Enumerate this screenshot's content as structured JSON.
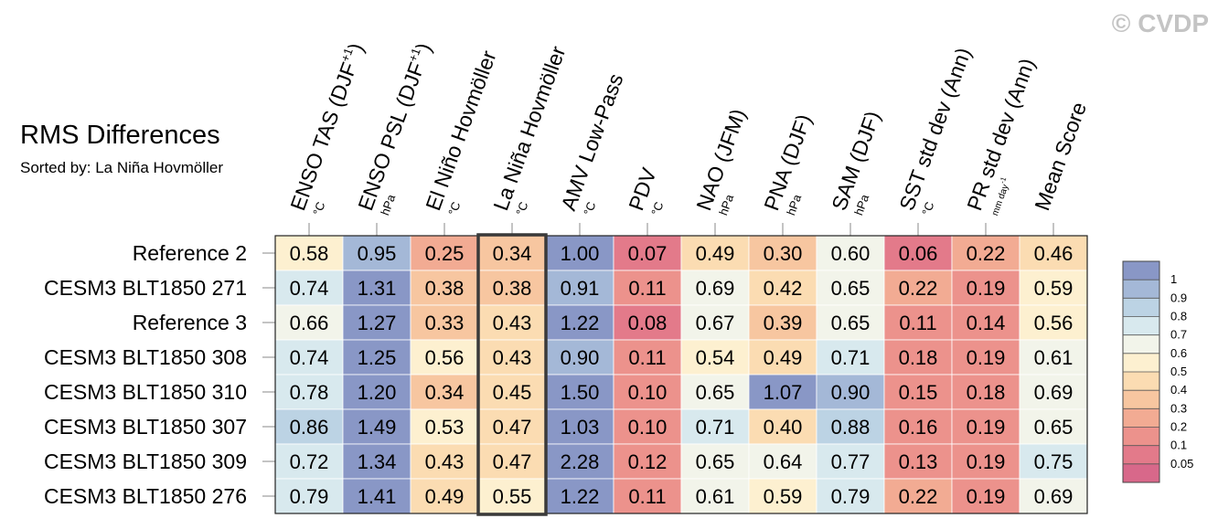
{
  "header": {
    "title": "RMS Differences",
    "subtitle": "Sorted by: La Niña Hovmöller",
    "watermark": "© CVDP"
  },
  "chart_data": {
    "type": "heatmap",
    "title": "RMS Differences",
    "subtitle": "Sorted by: La Niña Hovmöller",
    "columns": [
      {
        "label": "ENSO TAS (DJF",
        "sup": "+1",
        "tail": ")",
        "unit": "°C"
      },
      {
        "label": "ENSO PSL (DJF",
        "sup": "+1",
        "tail": ")",
        "unit": "hPa"
      },
      {
        "label": "El Niño Hovmöller",
        "sup": "",
        "tail": "",
        "unit": "°C"
      },
      {
        "label": "La Niña Hovmöller",
        "sup": "",
        "tail": "",
        "unit": "°C"
      },
      {
        "label": "AMV Low-Pass",
        "sup": "",
        "tail": "",
        "unit": "°C"
      },
      {
        "label": "PDV",
        "sup": "",
        "tail": "",
        "unit": "°C"
      },
      {
        "label": "NAO (JFM)",
        "sup": "",
        "tail": "",
        "unit": "hPa"
      },
      {
        "label": "PNA (DJF)",
        "sup": "",
        "tail": "",
        "unit": "hPa"
      },
      {
        "label": "SAM (DJF)",
        "sup": "",
        "tail": "",
        "unit": "hPa"
      },
      {
        "label": "SST std dev (Ann)",
        "sup": "",
        "tail": "",
        "unit": "°C"
      },
      {
        "label": "PR std dev (Ann)",
        "sup": "",
        "tail": "",
        "unit": "mm day",
        "unit_sup": "-1"
      },
      {
        "label": "Mean Score",
        "sup": "",
        "tail": "",
        "unit": ""
      }
    ],
    "rows": [
      "Reference 2",
      "CESM3 BLT1850 271",
      "Reference 3",
      "CESM3 BLT1850 308",
      "CESM3 BLT1850 310",
      "CESM3 BLT1850 307",
      "CESM3 BLT1850 309",
      "CESM3 BLT1850 276"
    ],
    "values": [
      [
        0.58,
        0.95,
        0.25,
        0.34,
        1.0,
        0.07,
        0.49,
        0.3,
        0.6,
        0.06,
        0.22,
        0.46
      ],
      [
        0.74,
        1.31,
        0.38,
        0.38,
        0.91,
        0.11,
        0.69,
        0.42,
        0.65,
        0.22,
        0.19,
        0.59
      ],
      [
        0.66,
        1.27,
        0.33,
        0.43,
        1.22,
        0.08,
        0.67,
        0.39,
        0.65,
        0.11,
        0.14,
        0.56
      ],
      [
        0.74,
        1.25,
        0.56,
        0.43,
        0.9,
        0.11,
        0.54,
        0.49,
        0.71,
        0.18,
        0.19,
        0.61
      ],
      [
        0.78,
        1.2,
        0.34,
        0.45,
        1.5,
        0.1,
        0.65,
        1.07,
        0.9,
        0.15,
        0.18,
        0.69
      ],
      [
        0.86,
        1.49,
        0.53,
        0.47,
        1.03,
        0.1,
        0.71,
        0.4,
        0.88,
        0.16,
        0.19,
        0.65
      ],
      [
        0.72,
        1.34,
        0.43,
        0.47,
        2.28,
        0.12,
        0.65,
        0.64,
        0.77,
        0.13,
        0.19,
        0.75
      ],
      [
        0.79,
        1.41,
        0.49,
        0.55,
        1.22,
        0.11,
        0.61,
        0.59,
        0.79,
        0.22,
        0.19,
        0.69
      ]
    ],
    "highlighted_column": "La Niña Hovmöller",
    "colorbar": {
      "levels": [
        "1",
        "0.9",
        "0.8",
        "0.7",
        "0.6",
        "0.5",
        "0.4",
        "0.3",
        "0.2",
        "0.1",
        "0.05"
      ],
      "colors": [
        "#8997c6",
        "#a4b8d7",
        "#bcd3e4",
        "#d8e9ee",
        "#f2f4ea",
        "#fdf0d0",
        "#fbdcb2",
        "#f7c6a0",
        "#f2ab93",
        "#ec928c",
        "#e37a8a",
        "#d8688a"
      ]
    }
  }
}
